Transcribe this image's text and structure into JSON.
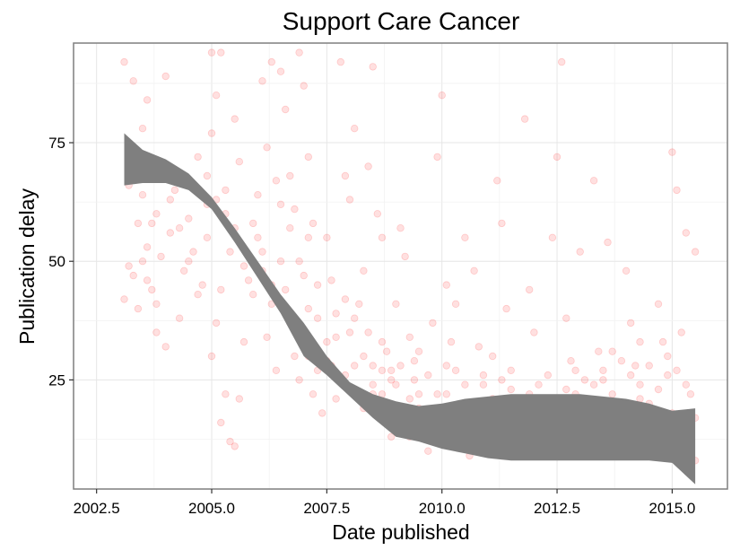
{
  "chart_data": {
    "type": "scatter",
    "title": "Support Care Cancer",
    "xlabel": "Date published",
    "ylabel": "Publication delay",
    "xlim": [
      2002.0,
      2016.2
    ],
    "ylim": [
      2,
      96
    ],
    "x_ticks": [
      2002.5,
      2005.0,
      2007.5,
      2010.0,
      2012.5,
      2015.0
    ],
    "x_tick_labels": [
      "2002.5",
      "2005.0",
      "2007.5",
      "2010.0",
      "2012.5",
      "2015.0"
    ],
    "y_ticks": [
      25,
      50,
      75
    ],
    "y_tick_labels": [
      "25",
      "50",
      "75"
    ],
    "grid": true,
    "legend": "none",
    "point_color": "#ff0000",
    "point_opacity": 0.12,
    "smooth_color": "#7f7f7f",
    "series": [
      {
        "type": "scatter",
        "points": [
          [
            2003.1,
            92
          ],
          [
            2003.3,
            88
          ],
          [
            2003.5,
            78
          ],
          [
            2003.6,
            84
          ],
          [
            2003.2,
            66
          ],
          [
            2003.4,
            58
          ],
          [
            2003.1,
            42
          ],
          [
            2003.3,
            47
          ],
          [
            2003.5,
            50
          ],
          [
            2003.8,
            60
          ],
          [
            2003.9,
            70
          ],
          [
            2004.0,
            89
          ],
          [
            2004.2,
            65
          ],
          [
            2004.1,
            56
          ],
          [
            2004.4,
            48
          ],
          [
            2003.7,
            44
          ],
          [
            2003.6,
            53
          ],
          [
            2003.8,
            35
          ],
          [
            2004.0,
            32
          ],
          [
            2004.3,
            38
          ],
          [
            2004.5,
            59
          ],
          [
            2004.6,
            52
          ],
          [
            2004.8,
            45
          ],
          [
            2004.9,
            62
          ],
          [
            2004.7,
            72
          ],
          [
            2005.0,
            94
          ],
          [
            2005.2,
            94
          ],
          [
            2005.1,
            85
          ],
          [
            2005.0,
            77
          ],
          [
            2004.9,
            68
          ],
          [
            2005.3,
            60
          ],
          [
            2005.4,
            52
          ],
          [
            2005.2,
            44
          ],
          [
            2005.1,
            37
          ],
          [
            2005.0,
            30
          ],
          [
            2005.3,
            22
          ],
          [
            2005.2,
            16
          ],
          [
            2005.4,
            12
          ],
          [
            2005.5,
            11
          ],
          [
            2005.6,
            21
          ],
          [
            2005.7,
            33
          ],
          [
            2005.8,
            46
          ],
          [
            2005.9,
            58
          ],
          [
            2006.0,
            64
          ],
          [
            2005.6,
            71
          ],
          [
            2005.5,
            80
          ],
          [
            2006.1,
            88
          ],
          [
            2006.3,
            92
          ],
          [
            2006.2,
            74
          ],
          [
            2006.4,
            67
          ],
          [
            2006.0,
            55
          ],
          [
            2006.1,
            48
          ],
          [
            2006.3,
            41
          ],
          [
            2006.2,
            34
          ],
          [
            2006.4,
            27
          ],
          [
            2006.5,
            90
          ],
          [
            2006.6,
            82
          ],
          [
            2006.7,
            68
          ],
          [
            2006.8,
            61
          ],
          [
            2006.9,
            94
          ],
          [
            2006.5,
            50
          ],
          [
            2006.6,
            44
          ],
          [
            2006.7,
            37
          ],
          [
            2006.8,
            30
          ],
          [
            2006.9,
            25
          ],
          [
            2007.0,
            87
          ],
          [
            2007.1,
            72
          ],
          [
            2007.2,
            58
          ],
          [
            2007.0,
            47
          ],
          [
            2007.3,
            38
          ],
          [
            2007.1,
            30
          ],
          [
            2007.2,
            22
          ],
          [
            2007.4,
            18
          ],
          [
            2007.5,
            55
          ],
          [
            2007.6,
            46
          ],
          [
            2007.7,
            34
          ],
          [
            2007.8,
            92
          ],
          [
            2007.9,
            68
          ],
          [
            2008.0,
            63
          ],
          [
            2008.1,
            78
          ],
          [
            2007.6,
            28
          ],
          [
            2007.9,
            26
          ],
          [
            2008.0,
            35
          ],
          [
            2008.2,
            41
          ],
          [
            2008.3,
            48
          ],
          [
            2008.4,
            70
          ],
          [
            2008.5,
            91
          ],
          [
            2008.6,
            60
          ],
          [
            2008.7,
            55
          ],
          [
            2008.8,
            31
          ],
          [
            2008.9,
            27
          ],
          [
            2008.7,
            22
          ],
          [
            2008.5,
            28
          ],
          [
            2008.4,
            35
          ],
          [
            2008.6,
            19
          ],
          [
            2008.9,
            13
          ],
          [
            2009.0,
            41
          ],
          [
            2009.1,
            57
          ],
          [
            2009.2,
            51
          ],
          [
            2009.3,
            34
          ],
          [
            2009.4,
            25
          ],
          [
            2009.5,
            19
          ],
          [
            2009.6,
            14
          ],
          [
            2009.7,
            10
          ],
          [
            2009.0,
            24
          ],
          [
            2009.2,
            18
          ],
          [
            2009.4,
            29
          ],
          [
            2009.8,
            37
          ],
          [
            2009.9,
            72
          ],
          [
            2010.0,
            85
          ],
          [
            2010.1,
            45
          ],
          [
            2010.2,
            33
          ],
          [
            2010.3,
            27
          ],
          [
            2010.4,
            19
          ],
          [
            2010.5,
            12
          ],
          [
            2010.6,
            9
          ],
          [
            2010.1,
            22
          ],
          [
            2010.3,
            41
          ],
          [
            2010.5,
            55
          ],
          [
            2010.7,
            48
          ],
          [
            2010.8,
            32
          ],
          [
            2010.9,
            24
          ],
          [
            2011.0,
            18
          ],
          [
            2011.1,
            13
          ],
          [
            2011.2,
            67
          ],
          [
            2011.3,
            58
          ],
          [
            2011.4,
            40
          ],
          [
            2011.5,
            27
          ],
          [
            2011.6,
            21
          ],
          [
            2011.7,
            15
          ],
          [
            2011.0,
            10
          ],
          [
            2011.3,
            9
          ],
          [
            2011.5,
            12
          ],
          [
            2011.8,
            80
          ],
          [
            2011.9,
            44
          ],
          [
            2012.0,
            35
          ],
          [
            2012.1,
            24
          ],
          [
            2012.2,
            18
          ],
          [
            2012.3,
            13
          ],
          [
            2012.4,
            55
          ],
          [
            2012.5,
            72
          ],
          [
            2012.6,
            92
          ],
          [
            2012.7,
            38
          ],
          [
            2012.8,
            29
          ],
          [
            2012.9,
            22
          ],
          [
            2013.0,
            52
          ],
          [
            2013.1,
            16
          ],
          [
            2013.2,
            12
          ],
          [
            2013.3,
            67
          ],
          [
            2013.4,
            31
          ],
          [
            2013.5,
            25
          ],
          [
            2013.6,
            54
          ],
          [
            2013.7,
            19
          ],
          [
            2013.8,
            14
          ],
          [
            2013.9,
            11
          ],
          [
            2014.0,
            48
          ],
          [
            2014.1,
            37
          ],
          [
            2014.2,
            28
          ],
          [
            2014.3,
            21
          ],
          [
            2014.4,
            16
          ],
          [
            2014.5,
            12
          ],
          [
            2014.6,
            9
          ],
          [
            2014.7,
            41
          ],
          [
            2014.8,
            33
          ],
          [
            2014.9,
            26
          ],
          [
            2015.0,
            73
          ],
          [
            2015.1,
            65
          ],
          [
            2015.2,
            35
          ],
          [
            2015.3,
            56
          ],
          [
            2015.4,
            22
          ],
          [
            2015.5,
            52
          ],
          [
            2015.0,
            18
          ],
          [
            2015.2,
            14
          ],
          [
            2015.4,
            11
          ],
          [
            2015.5,
            8
          ],
          [
            2015.3,
            16
          ],
          [
            2015.1,
            10
          ],
          [
            2014.9,
            13
          ],
          [
            2014.7,
            17
          ],
          [
            2014.5,
            20
          ],
          [
            2014.3,
            24
          ],
          [
            2014.1,
            13
          ],
          [
            2013.9,
            18
          ],
          [
            2013.7,
            22
          ],
          [
            2013.5,
            16
          ],
          [
            2013.3,
            20
          ],
          [
            2013.1,
            25
          ],
          [
            2012.9,
            19
          ],
          [
            2012.7,
            15
          ],
          [
            2012.5,
            21
          ],
          [
            2012.3,
            26
          ],
          [
            2012.1,
            19
          ],
          [
            2011.9,
            22
          ],
          [
            2011.7,
            18
          ],
          [
            2011.5,
            23
          ],
          [
            2011.3,
            17
          ],
          [
            2011.1,
            21
          ],
          [
            2010.9,
            26
          ],
          [
            2010.7,
            20
          ],
          [
            2010.5,
            24
          ],
          [
            2010.3,
            17
          ],
          [
            2010.1,
            28
          ],
          [
            2009.9,
            22
          ],
          [
            2009.7,
            26
          ],
          [
            2009.5,
            31
          ],
          [
            2009.3,
            21
          ],
          [
            2009.1,
            16
          ],
          [
            2008.9,
            25
          ],
          [
            2008.7,
            33
          ],
          [
            2008.5,
            24
          ],
          [
            2008.3,
            30
          ],
          [
            2008.1,
            38
          ],
          [
            2007.9,
            42
          ],
          [
            2007.7,
            39
          ],
          [
            2007.5,
            29
          ],
          [
            2007.3,
            45
          ],
          [
            2007.1,
            55
          ],
          [
            2006.9,
            50
          ],
          [
            2006.7,
            57
          ],
          [
            2006.5,
            62
          ],
          [
            2006.3,
            45
          ],
          [
            2006.1,
            52
          ],
          [
            2005.9,
            43
          ],
          [
            2005.7,
            49
          ],
          [
            2005.5,
            57
          ],
          [
            2005.3,
            65
          ],
          [
            2005.1,
            63
          ],
          [
            2004.9,
            55
          ],
          [
            2004.7,
            43
          ],
          [
            2004.5,
            50
          ],
          [
            2004.3,
            57
          ],
          [
            2004.1,
            63
          ],
          [
            2003.9,
            51
          ],
          [
            2003.7,
            58
          ],
          [
            2003.5,
            64
          ],
          [
            2003.3,
            72
          ],
          [
            2003.2,
            49
          ],
          [
            2003.4,
            40
          ],
          [
            2003.6,
            46
          ],
          [
            2003.8,
            41
          ],
          [
            2014.2,
            11
          ],
          [
            2014.4,
            9
          ],
          [
            2014.6,
            14
          ],
          [
            2014.8,
            10
          ],
          [
            2015.0,
            12
          ],
          [
            2015.2,
            9
          ],
          [
            2015.4,
            14
          ],
          [
            2015.5,
            17
          ],
          [
            2015.3,
            24
          ],
          [
            2015.1,
            27
          ],
          [
            2014.9,
            30
          ],
          [
            2014.7,
            23
          ],
          [
            2014.5,
            28
          ],
          [
            2014.3,
            33
          ],
          [
            2014.1,
            26
          ],
          [
            2013.9,
            29
          ],
          [
            2013.7,
            31
          ],
          [
            2013.5,
            27
          ],
          [
            2013.3,
            24
          ],
          [
            2013.1,
            19
          ],
          [
            2012.9,
            27
          ],
          [
            2012.7,
            23
          ],
          [
            2012.5,
            16
          ],
          [
            2012.3,
            19
          ],
          [
            2012.1,
            13
          ],
          [
            2011.9,
            11
          ],
          [
            2011.7,
            9
          ],
          [
            2011.5,
            14
          ],
          [
            2011.3,
            25
          ],
          [
            2011.1,
            30
          ],
          [
            2010.9,
            14
          ],
          [
            2010.7,
            11
          ],
          [
            2010.5,
            17
          ],
          [
            2010.3,
            13
          ],
          [
            2010.1,
            15
          ],
          [
            2009.9,
            14
          ],
          [
            2009.7,
            18
          ],
          [
            2009.5,
            22
          ],
          [
            2009.3,
            13
          ],
          [
            2009.1,
            28
          ],
          [
            2008.9,
            18
          ],
          [
            2008.7,
            27
          ],
          [
            2008.5,
            22
          ],
          [
            2008.3,
            19
          ],
          [
            2008.1,
            28
          ],
          [
            2007.9,
            24
          ],
          [
            2007.7,
            21
          ],
          [
            2007.5,
            33
          ],
          [
            2007.3,
            27
          ],
          [
            2007.1,
            40
          ]
        ]
      },
      {
        "type": "smooth-band",
        "x": [
          2003.1,
          2003.5,
          2004.0,
          2004.5,
          2005.0,
          2005.5,
          2006.0,
          2006.5,
          2007.0,
          2007.5,
          2008.0,
          2008.5,
          2009.0,
          2009.5,
          2010.0,
          2010.5,
          2011.0,
          2011.5,
          2012.0,
          2012.5,
          2013.0,
          2013.5,
          2014.0,
          2014.5,
          2015.0,
          2015.5
        ],
        "lower": [
          66,
          66.5,
          66.5,
          65,
          61,
          54,
          46.5,
          39,
          30,
          26,
          21.5,
          17,
          13,
          12,
          10.5,
          9.5,
          8.5,
          8,
          8,
          8,
          8,
          8,
          8,
          8,
          7.5,
          3
        ],
        "upper": [
          77,
          73.5,
          71.5,
          68.5,
          63.5,
          57,
          50,
          43,
          37,
          30,
          24.5,
          22,
          20.5,
          19.5,
          20,
          21,
          21.5,
          22,
          22,
          22,
          22,
          21.5,
          21,
          20,
          18.5,
          19
        ]
      }
    ]
  }
}
